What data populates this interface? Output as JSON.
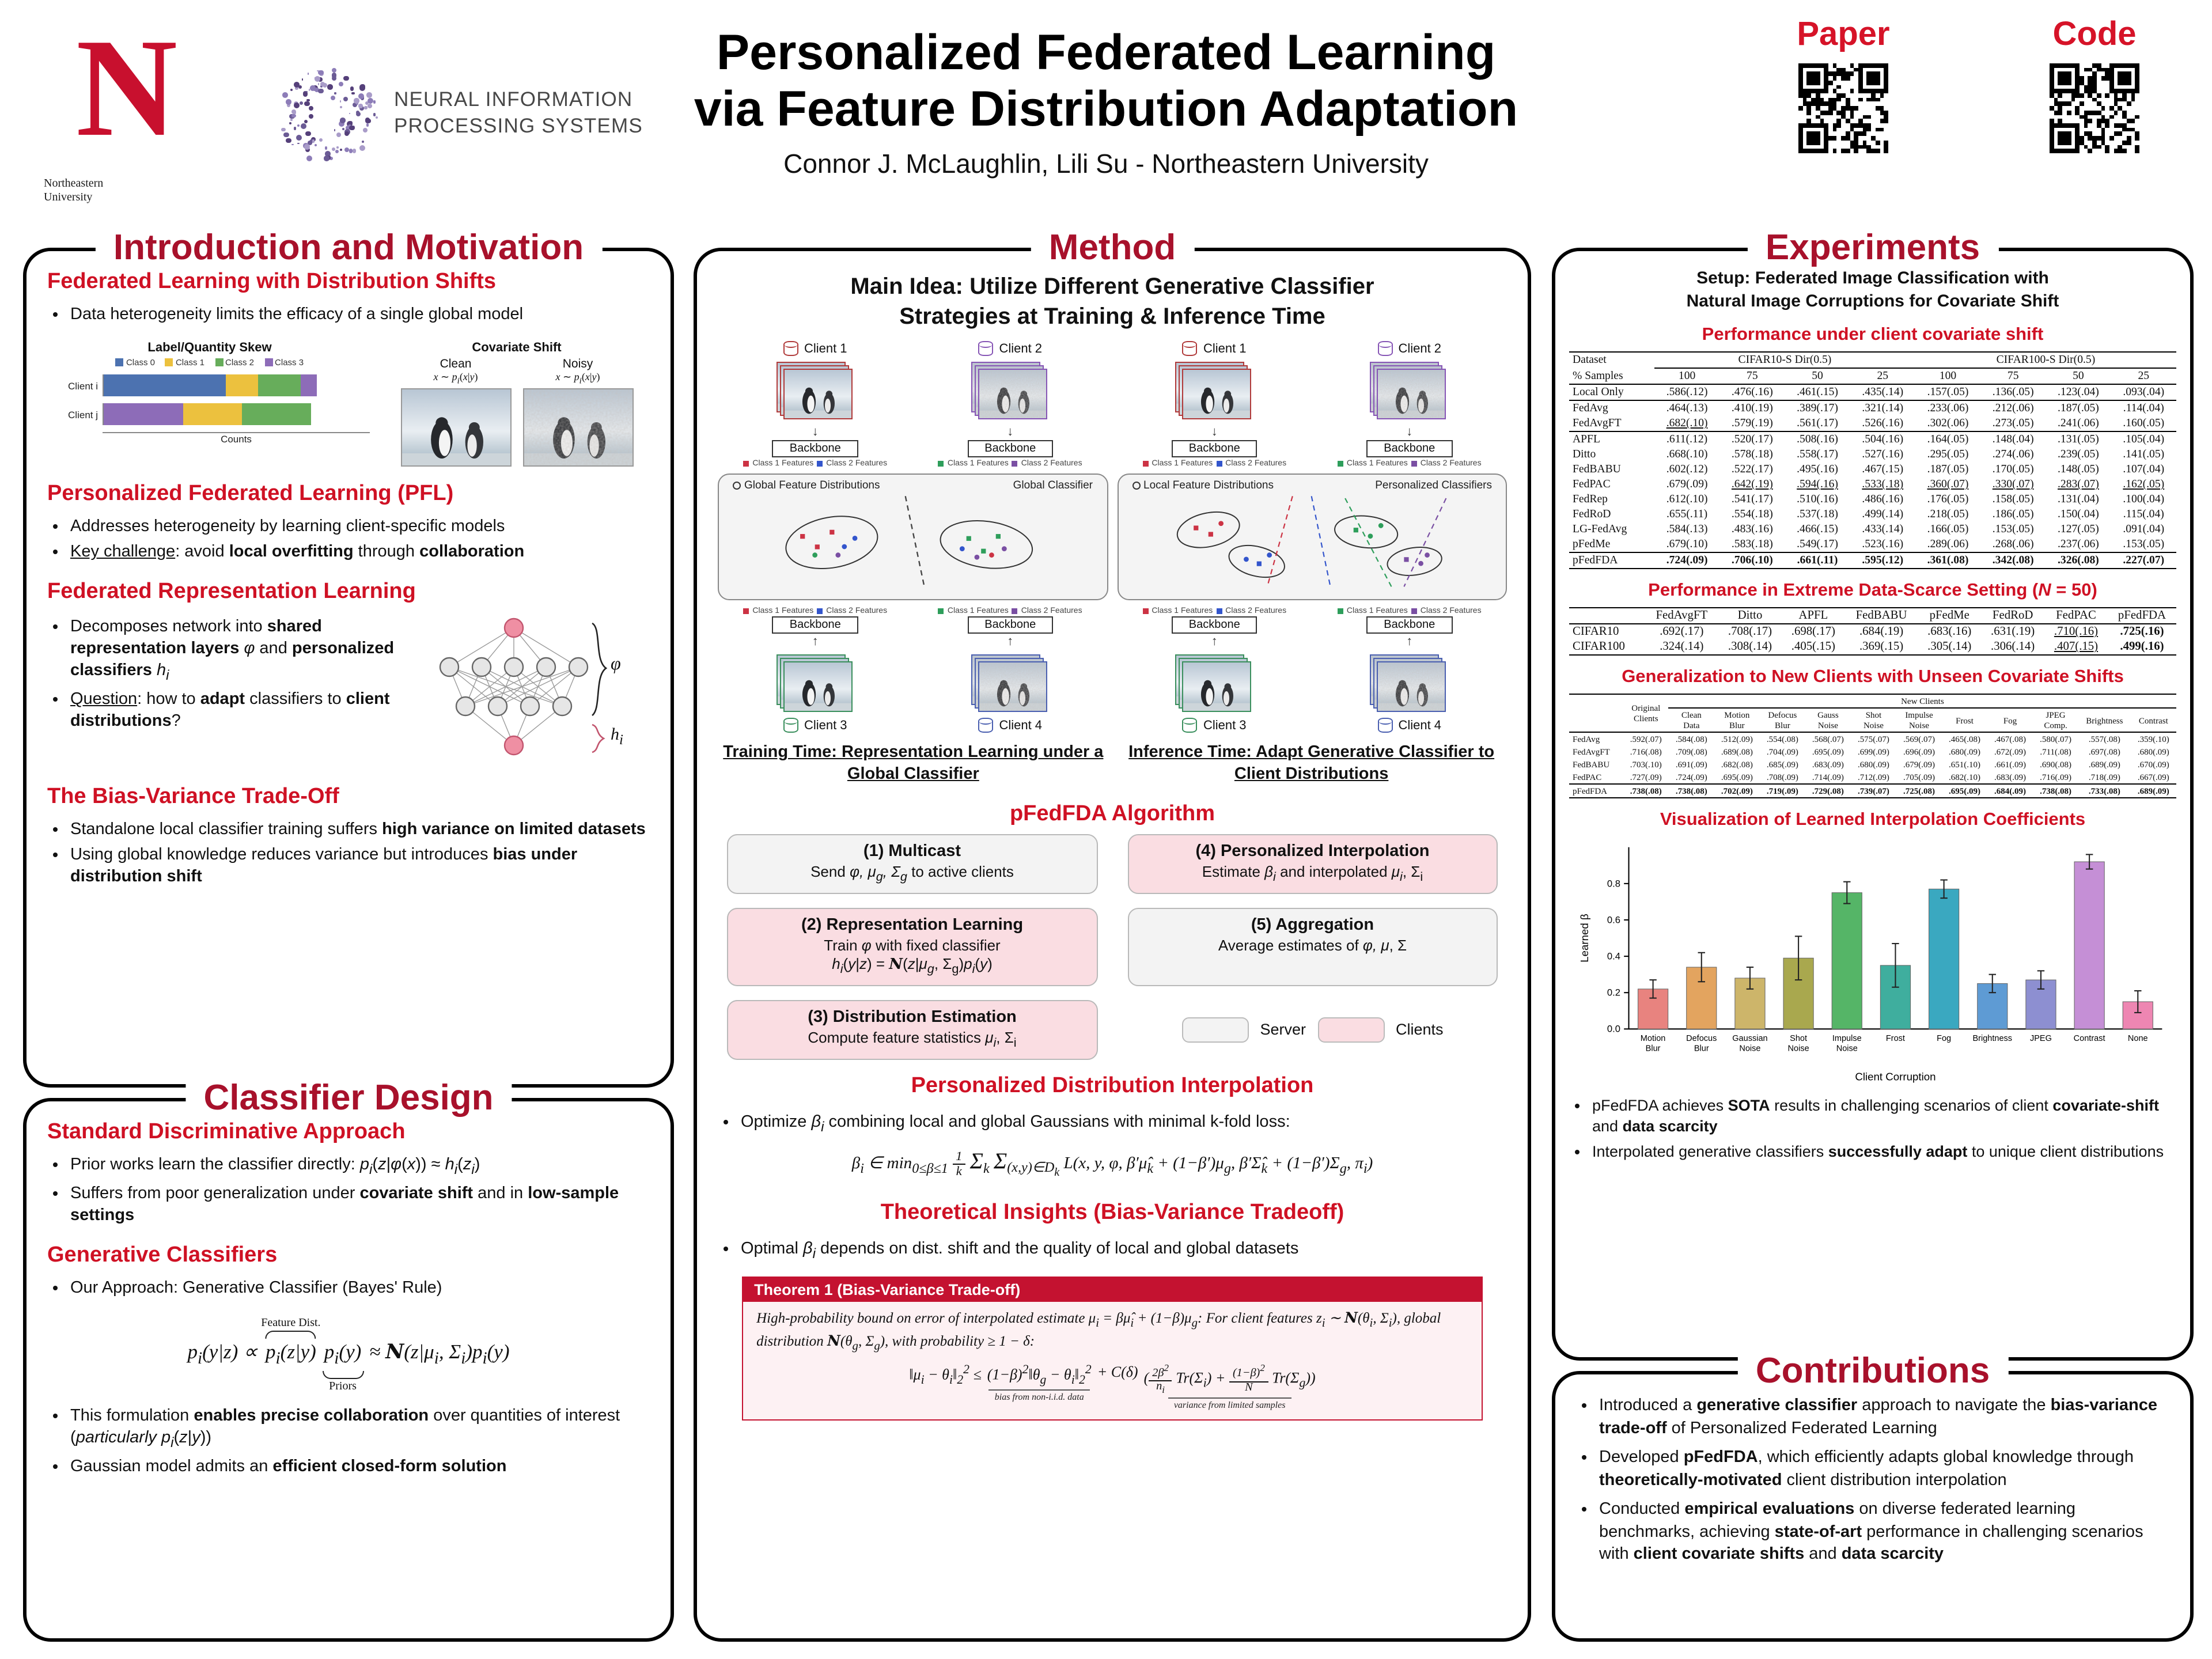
{
  "colors": {
    "brand_red": "#c8102e",
    "panel_title_red": "#a8112b",
    "heading_red": "#cf1124",
    "server_gray": "#f3f3f3",
    "client_pink": "#fadde2",
    "theorem_red": "#c41230"
  },
  "header": {
    "nu_logo_text": "Northeastern University",
    "nu_n": "N",
    "neurips_line1": "NEURAL INFORMATION",
    "neurips_line2": "PROCESSING SYSTEMS",
    "title_line1": "Personalized Federated Learning",
    "title_line2": "via Feature Distribution Adaptation",
    "authors": "Connor J. McLaughlin, Lili Su - Northeastern University",
    "paper_label": "Paper",
    "code_label": "Code"
  },
  "icons": {
    "down_arrow": "↓",
    "up_arrow": "↑"
  },
  "intro": {
    "panel_title": "Introduction and Motivation",
    "s1_title": "Federated Learning with Distribution Shifts",
    "s1_b1": "Data heterogeneity limits the efficacy of a single global model",
    "skew_chart": {
      "title": "Label/Quantity Skew",
      "xlabel": "Counts",
      "classes": [
        {
          "label": "Class 0",
          "color": "#4c72b0"
        },
        {
          "label": "Class 1",
          "color": "#ecc13e"
        },
        {
          "label": "Class 2",
          "color": "#67ad5b"
        },
        {
          "label": "Class 3",
          "color": "#8d6cb8"
        }
      ],
      "rows": [
        {
          "label": "Client i",
          "segments": [
            [
              0,
              0.46
            ],
            [
              1,
              0.12
            ],
            [
              2,
              0.16
            ],
            [
              3,
              0.06
            ]
          ]
        },
        {
          "label": "Client j",
          "segments": [
            [
              3,
              0.3
            ],
            [
              1,
              0.22
            ],
            [
              2,
              0.26
            ]
          ]
        }
      ]
    },
    "cov_fig": {
      "title": "Covariate Shift",
      "clean_label": "Clean",
      "noisy_label": "Noisy",
      "formula": "<i>x</i> ∼ <i>p<sub>i</sub></i>(<i>x</i>|<i>y</i>)"
    },
    "s2_title": "Personalized Federated Learning (PFL)",
    "s2_b1": "Addresses heterogeneity by learning client-specific models",
    "s2_b2": "<u>Key challenge</u>: avoid <b>local overfitting</b> through <b>collaboration</b>",
    "s3_title": "Federated Representation Learning",
    "s3_b1": "Decomposes network into <b>shared representation layers</b> <i>φ</i> and <b>personalized classifiers</b> <i>h<sub>i</sub></i>",
    "s3_b2": "<u>Question</u>: how to <b>adapt</b> classifiers to <b>client distributions</b>?",
    "nn": {
      "phi_label": "<i>φ</i>",
      "hi_label": "<i>h<sub>i</sub></i>"
    },
    "s4_title": "The Bias-Variance Trade-Off",
    "s4_b1": "Standalone local classifier training suffers <b>high variance on limited datasets</b>",
    "s4_b2": "Using global knowledge reduces variance but introduces <b>bias under distribution shift</b>"
  },
  "classifier": {
    "panel_title": "Classifier Design",
    "s1_title": "Standard Discriminative Approach",
    "s1_b1": "Prior works learn the classifier directly: <i>p<sub>i</sub></i>(<i>z</i>|<i>φ</i>(<i>x</i>)) ≈ <i>h<sub>i</sub></i>(<i>z<sub>i</sub></i>)",
    "s1_b2": "Suffers from poor generalization under <b>covariate shift</b> and in <b>low-sample settings</b>",
    "s2_title": "Generative Classifiers",
    "s2_b1": "Our Approach: Generative Classifier (Bayes' Rule)",
    "f_lhs": "<i>p<sub>i</sub></i>(<i>y</i>|<i>z</i>) ∝",
    "f_feature": "<i>p<sub>i</sub></i>(<i>z</i>|<i>y</i>)",
    "f_feature_label": "Feature Dist.",
    "f_prior": "<i>p<sub>i</sub></i>(<i>y</i>)",
    "f_prior_label": "Priors",
    "f_rhs": "≈ <span class='cal'>N</span>(<i>z</i>|<i>μ<sub>i</sub></i>, Σ<sub>i</sub>)<i>p<sub>i</sub></i>(<i>y</i>)",
    "s2_b2": "This formulation <b>enables precise collaboration</b> over quantities of interest (<i>particularly p<sub>i</sub></i>(<i>z</i>|<i>y</i>))",
    "s2_b3": "Gaussian model admits an <b>efficient closed-form solution</b>"
  },
  "method": {
    "panel_title": "Method",
    "main_idea_1": "Main Idea: Utilize Different Generative Classifier",
    "main_idea_2": "Strategies at Training & Inference Time",
    "clients": [
      "Client 1",
      "Client 2",
      "Client 3",
      "Client 4"
    ],
    "backbone_label": "Backbone",
    "class1_label": "Class 1 Features",
    "class2_label": "Class 2 Features",
    "train_left_label": "Global Feature Distributions",
    "train_right_label": "Global Classifier",
    "infer_left_label": "Local Feature Distributions",
    "infer_right_label": "Personalized Classifiers",
    "training_caption": "Training Time: Representation Learning under a Global Classifier",
    "inference_caption": "Inference Time: Adapt Generative Classifier to Client Distributions",
    "algo_heading": "pFedFDA Algorithm",
    "a1_title": "(1) Multicast",
    "a1_body": "Send <i>φ, μ<sub>g</sub>, Σ<sub>g</sub></i> to active clients",
    "a2_title": "(2) Representation Learning",
    "a2_body": "Train <i>φ</i> with fixed classifier<br><i>h<sub>i</sub></i>(<i>y</i>|<i>z</i>) = <span class='cal'>N</span>(<i>z</i>|<i>μ<sub>g</sub></i>, Σ<sub>g</sub>)<i>p<sub>i</sub></i>(<i>y</i>)",
    "a3_title": "(3) Distribution Estimation",
    "a3_body": "Compute feature statistics <i>μ<sub>i</sub></i>, Σ<sub>i</sub>",
    "a4_title": "(4) Personalized Interpolation",
    "a4_body": "Estimate <i>β<sub>i</sub></i> and interpolated <i>μ<sub>i</sub></i>, Σ<sub>i</sub>",
    "a5_title": "(5) Aggregation",
    "a5_body": "Average estimates of <i>φ, μ</i>, Σ",
    "legend_server": "Server",
    "legend_clients": "Clients",
    "pdi_heading": "Personalized Distribution Interpolation",
    "pdi_bullet": "Optimize <i>β<sub>i</sub></i> combining local and global Gaussians with minimal k-fold loss:",
    "pdi_formula": "β<sub>i</sub> ∈ min<sub>0≤β≤1</sub> <span class='frac'><span class='fn'>1</span><span class='fd'>k</span></span> <span class='sig'>Σ</span><sub>k</sub> <span class='sig'>Σ</span><sub>(x,y)∈D<sub>k</sub></sub> L(x, y, φ, β′μ̂<sub>k</sub> + (1−β′)μ<sub>g</sub>, β′Σ̂<sub>k</sub> + (1−β′)Σ<sub>g</sub>, π<sub>i</sub>)",
    "ti_heading": "Theoretical Insights (Bias-Variance Tradeoff)",
    "ti_bullet": "Optimal <i>β<sub>i</sub></i> depends on dist. shift and the quality of local and global datasets",
    "theorem": {
      "title": "Theorem 1 (Bias-Variance Trade-off)",
      "body": "High-probability bound on error of interpolated estimate μ<sub>i</sub> = βμ̂<sub>i</sub> + (1−β)μ<sub>g</sub>: For client features z<sub>i</sub> ∼ <span class='cal'>N</span>(θ<sub>i</sub>, Σ<sub>i</sub>), global distribution <span class='cal'>N</span>(θ<sub>g</sub>, Σ<sub>g</sub>), with probability ≥ 1 − δ:",
      "f_left": "‖μ<sub>i</sub> − θ<sub>i</sub>‖<sub>2</sub><sup>2</sup> ≤",
      "f_bias": "(1−β)<sup>2</sup>‖θ<sub>g</sub> − θ<sub>i</sub>‖<sub>2</sub><sup>2</sup>",
      "bias_label": "bias from non-i.i.d. data",
      "f_mid": "+ C(δ)",
      "f_var": "(<span class='frac'><span class='fn'>2β<sup>2</sup></span><span class='fd'>n<sub>i</sub></span></span> Tr(Σ<sub>i</sub>) + <span class='frac'><span class='fn'>(1−β)<sup>2</sup></span><span class='fd'>N</span></span> Tr(Σ<sub>g</sub>))",
      "var_label": "variance from limited samples"
    }
  },
  "experiments": {
    "panel_title": "Experiments",
    "setup_1": "Setup:  Federated Image Classification with",
    "setup_2": "Natural Image Corruptions for Covariate Shift",
    "table1": {
      "heading": "Performance under client covariate shift",
      "corner1": "Dataset",
      "corner2": "% Samples",
      "group1": "CIFAR10-S Dir(0.5)",
      "group2": "CIFAR100-S Dir(0.5)",
      "subcols": [
        "100",
        "75",
        "50",
        "25",
        "100",
        "75",
        "50",
        "25"
      ],
      "groups": [
        [
          [
            "Local Only",
            ".586(.12)",
            ".476(.16)",
            ".461(.15)",
            ".435(.14)",
            ".157(.05)",
            ".136(.05)",
            ".123(.04)",
            ".093(.04)"
          ]
        ],
        [
          [
            "FedAvg",
            ".464(.13)",
            ".410(.19)",
            ".389(.17)",
            ".321(.14)",
            ".233(.06)",
            ".212(.06)",
            ".187(.05)",
            ".114(.04)"
          ],
          [
            "FedAvgFT",
            "__.682(.10)__",
            ".579(.19)",
            ".561(.17)",
            ".526(.16)",
            ".302(.06)",
            ".273(.05)",
            ".241(.06)",
            ".160(.05)"
          ]
        ],
        [
          [
            "APFL",
            ".611(.12)",
            ".520(.17)",
            ".508(.16)",
            ".504(.16)",
            ".164(.05)",
            ".148(.04)",
            ".131(.05)",
            ".105(.04)"
          ],
          [
            "Ditto",
            ".668(.10)",
            ".578(.18)",
            ".558(.17)",
            ".527(.16)",
            ".295(.05)",
            ".274(.06)",
            ".239(.05)",
            ".141(.05)"
          ],
          [
            "FedBABU",
            ".602(.12)",
            ".522(.17)",
            ".495(.16)",
            ".467(.15)",
            ".187(.05)",
            ".170(.05)",
            ".148(.05)",
            ".107(.04)"
          ],
          [
            "FedPAC",
            ".679(.09)",
            "__.642(.19)__",
            "__.594(.16)__",
            "__.533(.18)__",
            "__.360(.07)__",
            "__.330(.07)__",
            "__.283(.07)__",
            "__.162(.05)__"
          ],
          [
            "FedRep",
            ".612(.10)",
            ".541(.17)",
            ".510(.16)",
            ".486(.16)",
            ".176(.05)",
            ".158(.05)",
            ".131(.04)",
            ".100(.04)"
          ],
          [
            "FedRoD",
            ".655(.11)",
            ".554(.18)",
            ".537(.18)",
            ".499(.14)",
            ".218(.05)",
            ".186(.05)",
            ".150(.04)",
            ".115(.04)"
          ],
          [
            "LG-FedAvg",
            ".584(.13)",
            ".483(.16)",
            ".466(.15)",
            ".433(.14)",
            ".166(.05)",
            ".153(.05)",
            ".127(.05)",
            ".091(.04)"
          ],
          [
            "pFedMe",
            ".679(.10)",
            ".583(.18)",
            ".549(.17)",
            ".523(.16)",
            ".289(.06)",
            ".268(.06)",
            ".237(.06)",
            ".153(.05)"
          ]
        ],
        [
          [
            "pFedFDA",
            "**.724(.09)**",
            "**.706(.10)**",
            "**.661(.11)**",
            "**.595(.12)**",
            "**.361(.08)**",
            "**.342(.08)**",
            "**.326(.08)**",
            "**.227(.07)**"
          ]
        ]
      ]
    },
    "table2": {
      "heading_html": "Performance in Extreme Data-Scarce Setting (<i>N</i> = 50)",
      "cols": [
        "FedAvgFT",
        "Ditto",
        "APFL",
        "FedBABU",
        "pFedMe",
        "FedRoD",
        "FedPAC",
        "pFedFDA"
      ],
      "rows": [
        [
          "CIFAR10",
          ".692(.17)",
          ".708(.17)",
          ".698(.17)",
          ".684(.19)",
          ".683(.16)",
          ".631(.19)",
          "__.710(.16)__",
          "**.725(.16)**"
        ],
        [
          "CIFAR100",
          ".324(.14)",
          ".308(.14)",
          ".405(.15)",
          ".369(.15)",
          ".305(.14)",
          ".306(.14)",
          "__.407(.15)__",
          "**.499(.16)**"
        ]
      ]
    },
    "table3": {
      "heading": "Generalization to New Clients with Unseen Covariate Shifts",
      "corner": "Original Clients",
      "group": "New Clients",
      "subcols": [
        "Clean Data",
        "Motion Blur",
        "Defocus Blur",
        "Gauss Noise",
        "Shot Noise",
        "Impulse Noise",
        "Frost",
        "Fog",
        "JPEG Comp.",
        "Brightness",
        "Contrast"
      ],
      "rows": [
        [
          "FedAvg",
          ".592(.07)",
          ".584(.08)",
          ".512(.09)",
          ".554(.08)",
          ".568(.07)",
          ".575(.07)",
          ".569(.07)",
          ".465(.08)",
          ".467(.08)",
          ".580(.07)",
          ".557(.08)",
          ".359(.10)"
        ],
        [
          "FedAvgFT",
          ".716(.08)",
          ".709(.08)",
          ".689(.08)",
          ".704(.09)",
          ".695(.09)",
          ".699(.09)",
          ".696(.09)",
          ".680(.09)",
          ".672(.09)",
          ".711(.08)",
          ".697(.08)",
          ".680(.09)"
        ],
        [
          "FedBABU",
          ".703(.10)",
          ".691(.09)",
          ".682(.08)",
          ".685(.09)",
          ".683(.09)",
          ".680(.09)",
          ".679(.09)",
          ".651(.10)",
          ".661(.09)",
          ".690(.08)",
          ".689(.09)",
          ".670(.09)"
        ],
        [
          "FedPAC",
          ".727(.09)",
          ".724(.09)",
          ".695(.09)",
          ".708(.09)",
          ".714(.09)",
          ".712(.09)",
          ".705(.09)",
          ".682(.10)",
          ".683(.09)",
          ".716(.09)",
          ".718(.09)",
          ".667(.09)"
        ],
        [
          "pFedFDA",
          "**.738(.08)**",
          "**.738(.08)**",
          "**.702(.09)**",
          "**.719(.09)**",
          "**.729(.08)**",
          "**.739(.07)**",
          "**.725(.08)**",
          "**.695(.09)**",
          "**.684(.09)**",
          "**.738(.08)**",
          "**.733(.08)**",
          "**.689(.09)**"
        ]
      ]
    },
    "chart_heading": "Visualization of Learned Interpolation Coefficients",
    "b1": "pFedFDA achieves <b>SOTA</b> results in challenging scenarios of client <b>covariate-shift</b> and <b>data scarcity</b>",
    "b2": "Interpolated generative classifiers <b>successfully adapt</b> to unique client distributions"
  },
  "contributions": {
    "panel_title": "Contributions",
    "c1": "Introduced a <b>generative classifier</b> approach to navigate the <b>bias-variance trade-off</b> of Personalized Federated Learning",
    "c2": "Developed <b>pFedFDA</b>, which efficiently adapts global knowledge through <b>theoretically-motivated</b> client distribution interpolation",
    "c3": "Conducted <b>empirical evaluations</b> on diverse federated learning benchmarks, achieving <b>state-of-art</b> performance in challenging scenarios with <b>client covariate shifts</b> and <b>data scarcity</b>"
  },
  "chart_data": {
    "type": "bar",
    "title": "Visualization of Learned Interpolation Coefficients",
    "xlabel": "Client Corruption",
    "ylabel": "Learned β",
    "ylim": [
      0,
      1.0
    ],
    "yticks": [
      0,
      0.2,
      0.4,
      0.6,
      0.8
    ],
    "categories": [
      "Motion Blur",
      "Defocus Blur",
      "Gaussian Noise",
      "Shot Noise",
      "Impulse Noise",
      "Frost",
      "Fog",
      "Brightness",
      "JPEG",
      "Contrast",
      "None"
    ],
    "values": [
      0.22,
      0.34,
      0.28,
      0.39,
      0.75,
      0.35,
      0.77,
      0.25,
      0.27,
      0.92,
      0.15
    ],
    "errors": [
      0.05,
      0.08,
      0.06,
      0.12,
      0.06,
      0.12,
      0.05,
      0.05,
      0.05,
      0.04,
      0.06
    ],
    "colors": [
      "#e8837f",
      "#e3a45f",
      "#cdb56a",
      "#a9a84e",
      "#55b567",
      "#3fae9e",
      "#3aa8c0",
      "#5e9bd4",
      "#8d8fd1",
      "#c58fd6",
      "#ee86b2"
    ],
    "legend_position": "none",
    "grid": false
  }
}
